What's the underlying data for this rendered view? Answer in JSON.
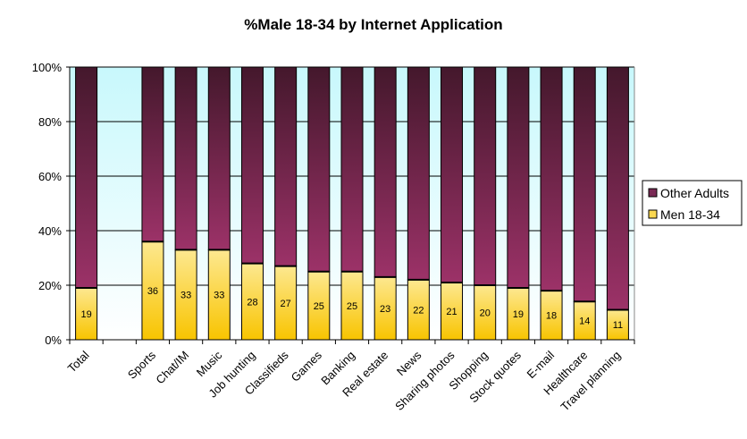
{
  "chart_data": {
    "type": "bar",
    "stacked": true,
    "percent": true,
    "title": "%Male 18-34 by Internet Application",
    "xlabel": "",
    "ylabel": "",
    "ylim": [
      0,
      100
    ],
    "yticks": [
      "0%",
      "20%",
      "40%",
      "60%",
      "80%",
      "100%"
    ],
    "categories": [
      "Total",
      "",
      "Sports",
      "Chat/IM",
      "Music",
      "Job hunting",
      "Classifieds",
      "Games",
      "Banking",
      "Real estate",
      "News",
      "Sharing photos",
      "Shopping",
      "Stock quotes",
      "E-mail",
      "Healthcare",
      "Travel planning"
    ],
    "series": [
      {
        "name": "Men 18-34",
        "color": "#f8c800",
        "values": [
          19,
          null,
          36,
          33,
          33,
          28,
          27,
          25,
          25,
          23,
          22,
          21,
          20,
          19,
          18,
          14,
          11
        ]
      },
      {
        "name": "Other Adults",
        "color": "#7a2a55",
        "values": [
          81,
          null,
          64,
          67,
          67,
          72,
          73,
          75,
          75,
          77,
          78,
          79,
          80,
          81,
          82,
          86,
          89
        ]
      }
    ],
    "data_labels": [
      "19",
      "",
      "36",
      "33",
      "33",
      "28",
      "27",
      "25",
      "25",
      "23",
      "22",
      "21",
      "20",
      "19",
      "18",
      "14",
      "11"
    ],
    "legend": {
      "placement": "right",
      "entries": [
        "Other Adults",
        "Men 18-34"
      ]
    },
    "grid": true
  }
}
